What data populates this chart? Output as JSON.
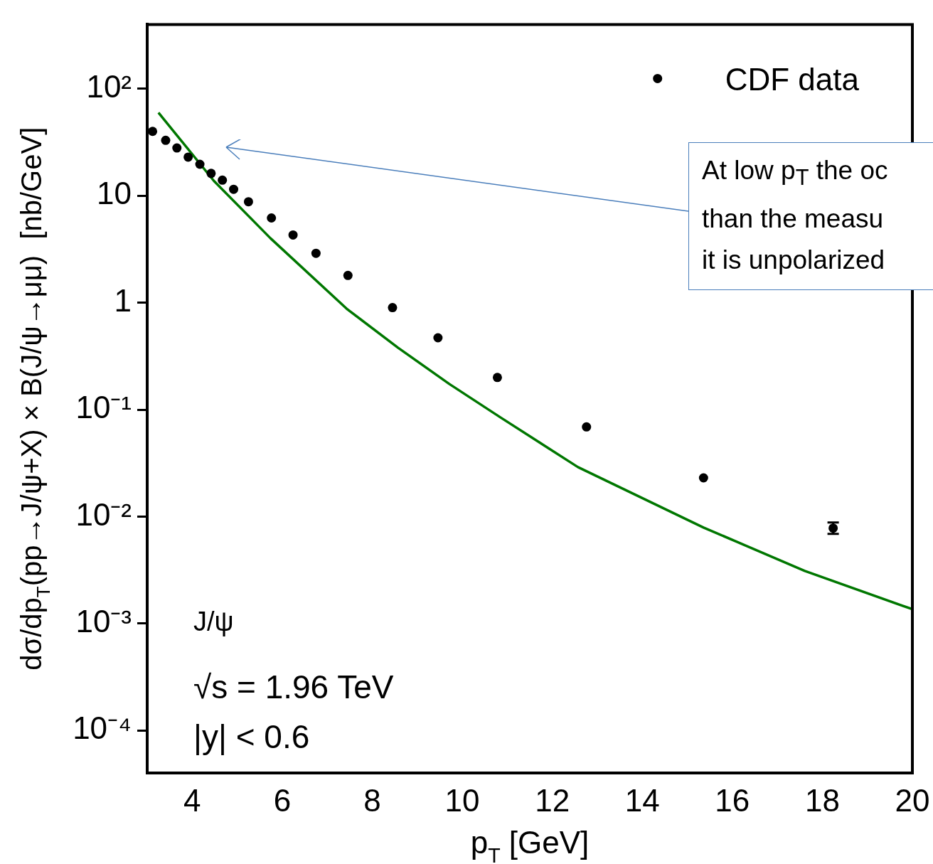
{
  "chart_data": {
    "type": "scatter",
    "xlabel": "p$_{T}$ [GeV]",
    "ylabel": "dσ/dp$_{T}$(pp→J/ψ+X) × B(J/ψ→μμ)  [nb/GeV]",
    "log": "y",
    "xlim": [
      3,
      20
    ],
    "xticks": [
      4,
      6,
      8,
      10,
      12,
      14,
      16,
      18,
      20
    ],
    "ylim": [
      4e-05,
      400
    ],
    "yticks": [
      {
        "value": 100,
        "label": "10²"
      },
      {
        "value": 10,
        "label": "10"
      },
      {
        "value": 1,
        "label": "1"
      },
      {
        "value": 0.1,
        "label": "10⁻¹"
      },
      {
        "value": 0.01,
        "label": "10⁻²"
      },
      {
        "value": 0.001,
        "label": "10⁻³"
      },
      {
        "value": 0.0001,
        "label": "10⁻⁴"
      }
    ],
    "grid": false,
    "legend": "top right",
    "series": [
      {
        "name": "CDF data",
        "type": "scatter",
        "color": "#000000",
        "marker": "circle",
        "x": [
          3.12,
          3.41,
          3.66,
          3.91,
          4.17,
          4.42,
          4.67,
          4.92,
          5.25,
          5.76,
          6.24,
          6.75,
          7.46,
          8.45,
          9.46,
          10.78,
          12.76,
          15.36,
          18.24
        ],
        "values": [
          40,
          33,
          28,
          23,
          19.7,
          16.2,
          14,
          11.5,
          8.8,
          6.2,
          4.3,
          2.9,
          1.8,
          0.9,
          0.47,
          0.2,
          0.069,
          0.023,
          0.0078
        ],
        "errors": [
          null,
          null,
          null,
          null,
          null,
          null,
          null,
          null,
          null,
          null,
          null,
          null,
          null,
          null,
          null,
          null,
          null,
          null,
          [
            0.0069,
            0.0088
          ]
        ]
      },
      {
        "type": "line",
        "color": "#007700",
        "marker": "none",
        "line_style": "solid",
        "x": [
          3.25,
          4.48,
          5.74,
          7.43,
          8.57,
          9.71,
          10.84,
          12.57,
          15.36,
          17.61,
          20
        ],
        "values": [
          60,
          13.8,
          4.0,
          0.88,
          0.38,
          0.174,
          0.085,
          0.029,
          0.0079,
          0.0031,
          0.00136
        ]
      }
    ],
    "annotations": [
      "J/ψ",
      "√s = 1.96 TeV",
      "|y| < 0.6",
      "At low p$_{T}$ the oc\nthan the measu\nit is unpolarized"
    ]
  }
}
